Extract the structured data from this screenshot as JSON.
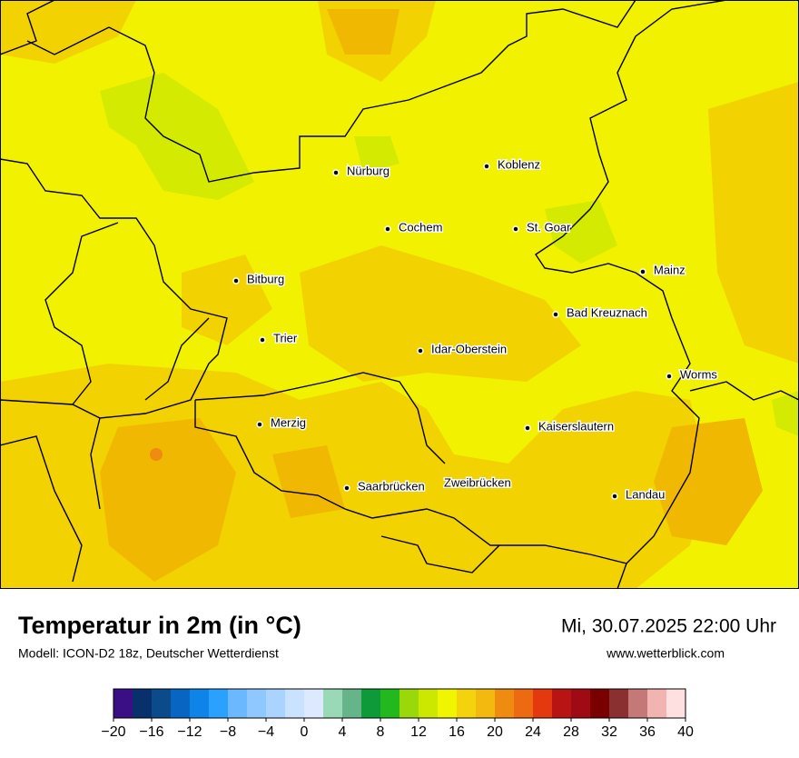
{
  "map": {
    "cities": [
      "Nürburg",
      "Koblenz",
      "Cochem",
      "St. Goar",
      "Mainz",
      "Bitburg",
      "Bad Kreuznach",
      "Trier",
      "Idar-Oberstein",
      "Worms",
      "Merzig",
      "Kaiserslautern",
      "Saarbrücken",
      "Zweibrücken",
      "Landau"
    ]
  },
  "footer": {
    "title": "Temperatur in 2m (in °C)",
    "model": "Modell: ICON-D2 18z, Deutscher Wetterdienst",
    "datetime": "Mi, 30.07.2025 22:00 Uhr",
    "website": "www.wetterblick.com"
  },
  "colorbar": {
    "colors": [
      "#3a0f85",
      "#08306b",
      "#0b4a8b",
      "#0866c2",
      "#0f84e8",
      "#2aa0ff",
      "#6cb8ff",
      "#8ec8ff",
      "#aad4ff",
      "#c8e2ff",
      "#dde9ff",
      "#9ad9b8",
      "#66b48a",
      "#0f9a3a",
      "#22b81e",
      "#9bd80a",
      "#cce800",
      "#f0f500",
      "#f4d30c",
      "#f2b90e",
      "#ee8b10",
      "#ee6a12",
      "#e4380e",
      "#b81414",
      "#a00a14",
      "#7a0000",
      "#8b3030",
      "#c47878",
      "#f2b4b0",
      "#ffe0e0"
    ],
    "ticks": [
      {
        "value": -20,
        "label": "−20"
      },
      {
        "value": -16,
        "label": "−16"
      },
      {
        "value": -12,
        "label": "−12"
      },
      {
        "value": -8,
        "label": "−8"
      },
      {
        "value": -4,
        "label": "−4"
      },
      0,
      4,
      8,
      12,
      16,
      20,
      24,
      28,
      32,
      36,
      40
    ]
  }
}
